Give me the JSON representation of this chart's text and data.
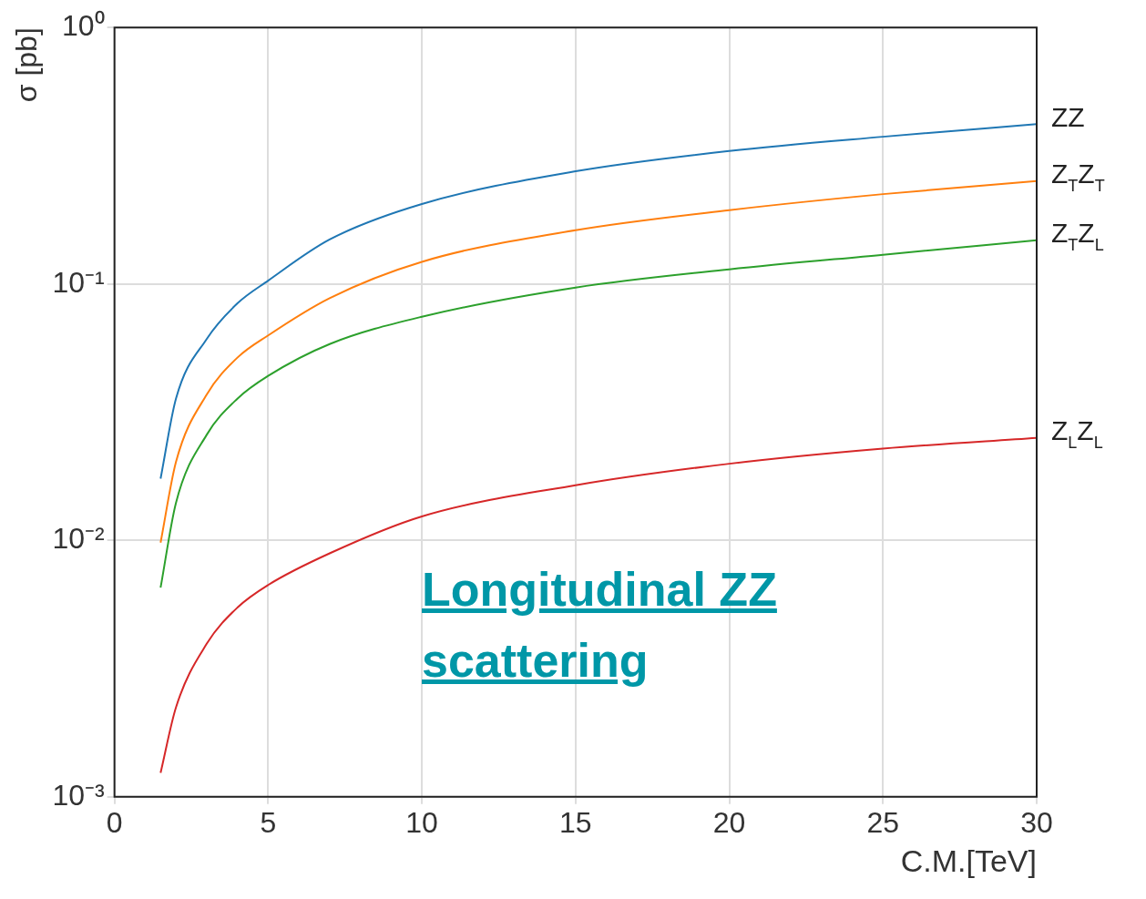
{
  "chart_data": {
    "type": "line",
    "xlabel": "C.M.[TeV]",
    "ylabel": "σ [pb]",
    "log": "y",
    "grid": true,
    "legend": false,
    "marker": "none",
    "line_style": "solid",
    "xlim": [
      0,
      30
    ],
    "xticks": [
      0,
      5,
      10,
      15,
      20,
      25,
      30
    ],
    "ylim": [
      0.001,
      1
    ],
    "yticks": [
      {
        "value": 0.001,
        "label": "10⁻³"
      },
      {
        "value": 0.01,
        "label": "10⁻²"
      },
      {
        "value": 0.1,
        "label": "10⁻¹"
      },
      {
        "value": 1,
        "label": "10⁰"
      }
    ],
    "x": [
      1.5,
      2,
      3,
      4,
      5,
      7,
      10,
      15,
      20,
      25,
      30
    ],
    "series": [
      {
        "name": "ZZ",
        "color": "#1f77b4",
        "values": [
          0.0174,
          0.0357,
          0.061,
          0.084,
          0.103,
          0.149,
          0.205,
          0.275,
          0.33,
          0.375,
          0.42
        ]
      },
      {
        "name": "Z$_{T}$Z$_{T}$",
        "color": "#ff7f0e",
        "values": [
          0.0098,
          0.0202,
          0.037,
          0.0516,
          0.063,
          0.088,
          0.122,
          0.162,
          0.194,
          0.224,
          0.252
        ]
      },
      {
        "name": "Z$_{T}$Z$_{L}$",
        "color": "#2ca02c",
        "values": [
          0.00654,
          0.014,
          0.0258,
          0.0357,
          0.0438,
          0.0583,
          0.0745,
          0.0968,
          0.114,
          0.13,
          0.148
        ]
      },
      {
        "name": "Z$_{L}$Z$_{L}$",
        "color": "#d62728",
        "values": [
          0.00124,
          0.00223,
          0.00395,
          0.00547,
          0.0067,
          0.0089,
          0.0124,
          0.0164,
          0.0199,
          0.0228,
          0.0251
        ]
      }
    ],
    "annotations": [
      "Longitudinal ZZ scattering"
    ]
  }
}
